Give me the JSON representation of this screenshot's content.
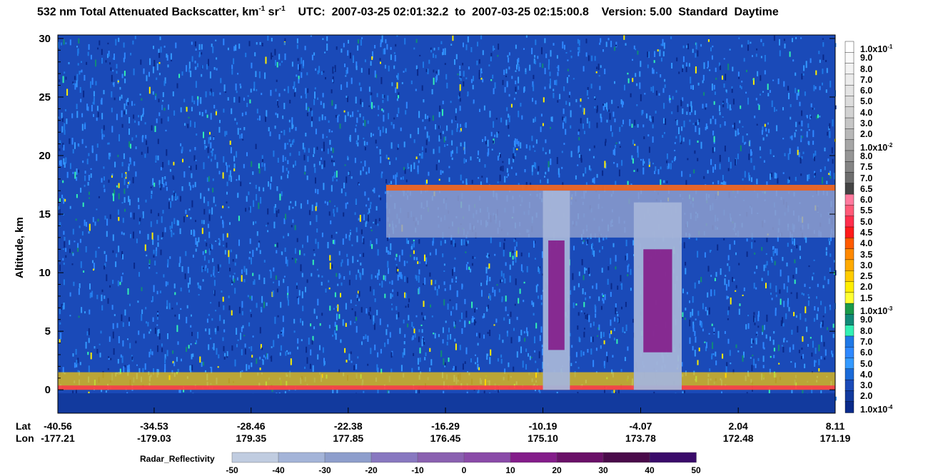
{
  "title": {
    "prefix": "532 nm Total Attenuated Backscatter, km",
    "exp1": "-1",
    "mid": " sr",
    "exp2": "-1",
    "utc": "    UTC:  2007-03-25 02:01:32.2  to  2007-03-25 02:15:00.8    Version: 5.00  Standard  Daytime"
  },
  "chart_data": {
    "type": "heatmap",
    "ylabel": "Altitude, km",
    "ylim": [
      -2,
      30.3
    ],
    "yticks": [
      "30",
      "25",
      "20",
      "15",
      "10",
      "5",
      "0"
    ],
    "ytick_values": [
      30,
      25,
      20,
      15,
      10,
      5,
      0
    ],
    "x_row_labels": [
      "Lat",
      "Lon"
    ],
    "x_ticks": [
      {
        "lat": "-40.56",
        "lon": "-177.21"
      },
      {
        "lat": "-34.53",
        "lon": "-179.03"
      },
      {
        "lat": "-28.46",
        "lon": "179.35"
      },
      {
        "lat": "-22.38",
        "lon": "177.85"
      },
      {
        "lat": "-16.29",
        "lon": "176.45"
      },
      {
        "lat": "-10.19",
        "lon": "175.10"
      },
      {
        "lat": "-4.07",
        "lon": "173.78"
      },
      {
        "lat": "2.04",
        "lon": "172.48"
      },
      {
        "lat": "8.11",
        "lon": "171.19"
      }
    ],
    "colorbar": {
      "labels": [
        "1.0x10",
        "9.0",
        "8.0",
        "7.0",
        "6.0",
        "5.0",
        "4.0",
        "3.0",
        "2.0",
        "1.0x10",
        "8.0",
        "7.5",
        "7.0",
        "6.5",
        "6.0",
        "5.5",
        "5.0",
        "4.5",
        "4.0",
        "3.5",
        "3.0",
        "2.5",
        "2.0",
        "1.5",
        "1.0x10",
        "9.0",
        "8.0",
        "7.0",
        "6.0",
        "5.0",
        "4.0",
        "3.0",
        "2.0",
        "1.0x10"
      ],
      "exponents": {
        "0": "-1",
        "9": "-2",
        "24": "-3",
        "33": "-4"
      },
      "colors": [
        "#ffffff",
        "#fafafa",
        "#f3f3f3",
        "#ececec",
        "#e4e4e4",
        "#dcdcdc",
        "#d2d2d2",
        "#c6c6c6",
        "#b8b8b8",
        "#a6a6a6",
        "#959595",
        "#848484",
        "#6e6e6e",
        "#444444",
        "#ff7a9e",
        "#ff5a78",
        "#ff2e4c",
        "#ff1a1a",
        "#ff5a00",
        "#ff8800",
        "#ffaa00",
        "#ffcc00",
        "#ffee00",
        "#ffff33",
        "#1a9a4a",
        "#118a78",
        "#33f0b4",
        "#1f78e6",
        "#2e88ff",
        "#3399ff",
        "#1a6ad8",
        "#1a4ab8",
        "#123a9e",
        "#0a2a8a"
      ]
    },
    "radar_colorbar": {
      "title": "Radar_Reflectivity",
      "ticks": [
        "-50",
        "-40",
        "-30",
        "-20",
        "-10",
        "0",
        "10",
        "20",
        "30",
        "40",
        "50"
      ],
      "colors": [
        "#c0cce0",
        "#a4b4d8",
        "#8e9ecc",
        "#8878c0",
        "#8a60b0",
        "#8a4aa8",
        "#841c8a",
        "#6a1068",
        "#4a0a4a",
        "#3a0a6a"
      ]
    },
    "features": [
      {
        "name": "boundary-layer aerosol",
        "alt_km": [
          0,
          1.5
        ],
        "lat": [
          -40.56,
          8.11
        ]
      },
      {
        "name": "cirrus layer",
        "alt_km": [
          13,
          17.5
        ],
        "lat": [
          -20.0,
          8.11
        ]
      },
      {
        "name": "deep convective radar echo",
        "alt_km": [
          0,
          17
        ],
        "lat": [
          -10.19,
          -8.5
        ]
      },
      {
        "name": "deep convective radar echo",
        "alt_km": [
          0,
          16
        ],
        "lat": [
          -4.5,
          -1.5
        ]
      }
    ]
  }
}
